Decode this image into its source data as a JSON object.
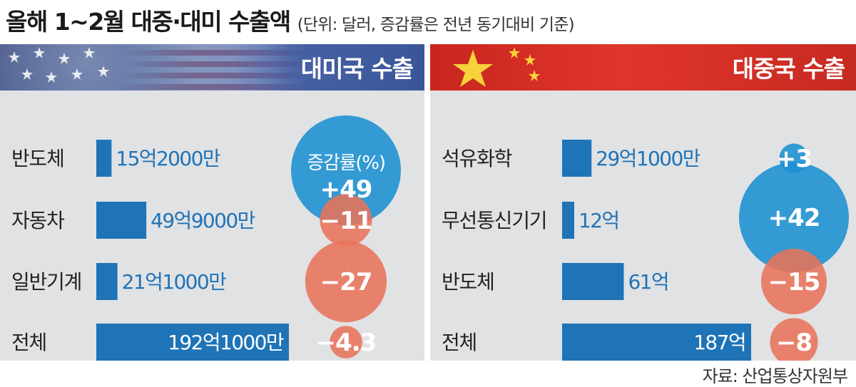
{
  "title": "올해 1~2월 대중·대미 수출액",
  "subtitle": "(단위: 달러, 증감률은 전년 동기대비 기준)",
  "source": "자료: 산업통상자원부",
  "colors": {
    "bar": "#1f73b7",
    "positive_bubble": "#1a8fd0",
    "negative_bubble": "#e8735a",
    "panel_bg": "#e1e2e4"
  },
  "chart_data": [
    {
      "type": "bar",
      "title": "대미국 수출",
      "categories": [
        "반도체",
        "자동차",
        "일반기계",
        "전체"
      ],
      "values": [
        1520000000,
        4990000000,
        2110000000,
        19210000000
      ],
      "value_labels": [
        "15억2000만",
        "49억9000만",
        "21억1000만",
        "192억1000만"
      ],
      "growth_header": "증감률(%)",
      "growth": [
        49,
        -11,
        -27,
        -4.3
      ],
      "growth_labels": [
        "+49",
        "−11",
        "−27",
        "−4.3"
      ]
    },
    {
      "type": "bar",
      "title": "대중국 수출",
      "categories": [
        "석유화학",
        "무선통신기기",
        "반도체",
        "전체"
      ],
      "values": [
        2910000000,
        1200000000,
        6100000000,
        18700000000
      ],
      "value_labels": [
        "29억1000만",
        "12억",
        "61억",
        "187억"
      ],
      "growth": [
        3,
        42,
        -15,
        -8
      ],
      "growth_labels": [
        "+3",
        "+42",
        "−15",
        "−8"
      ]
    }
  ]
}
